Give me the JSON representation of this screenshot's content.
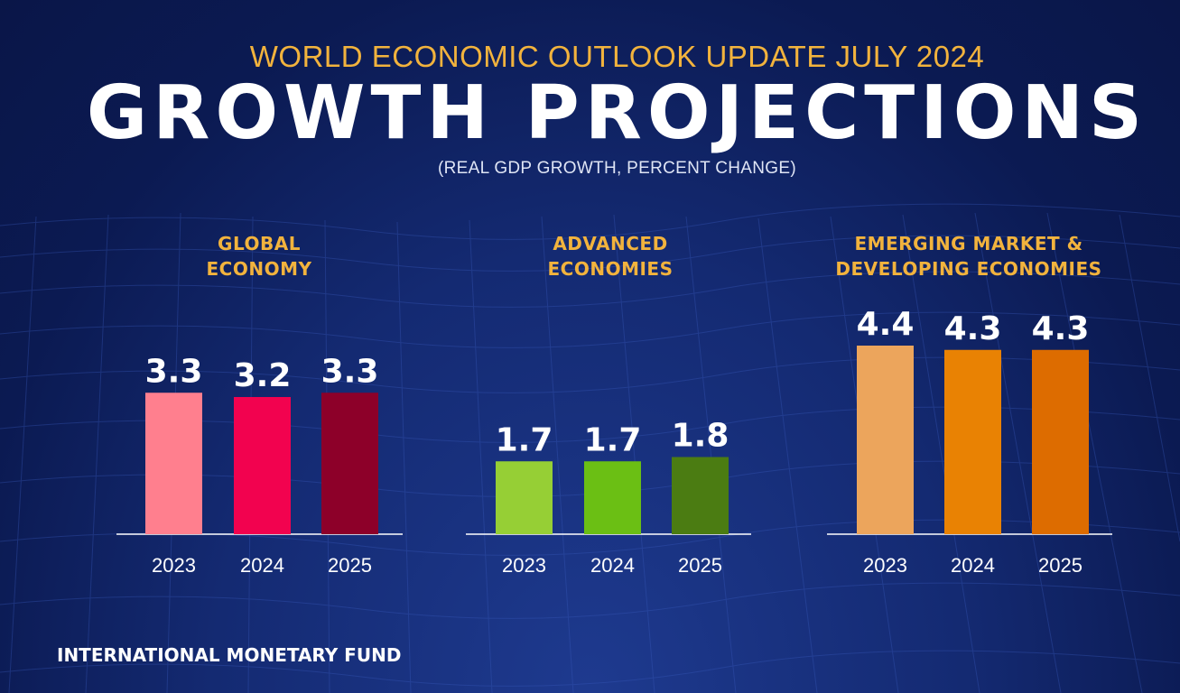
{
  "header": {
    "supertitle": "WORLD ECONOMIC OUTLOOK UPDATE JULY 2024",
    "title": "GROWTH PROJECTIONS",
    "subtitle": "(REAL GDP GROWTH, PERCENT CHANGE)"
  },
  "footer": {
    "source": "INTERNATIONAL MONETARY FUND"
  },
  "colors": {
    "background": "#0b1a52",
    "accent": "#f2b33d",
    "text": "#ffffff"
  },
  "chart_data": [
    {
      "type": "bar",
      "title_lines": [
        "GLOBAL",
        "ECONOMY"
      ],
      "categories": [
        "2023",
        "2024",
        "2025"
      ],
      "values": [
        3.3,
        3.2,
        3.3
      ],
      "value_labels": [
        "3.3",
        "3.2",
        "3.3"
      ],
      "colors": [
        "#ff7f8e",
        "#f2024f",
        "#8d0029"
      ],
      "ylim": [
        0,
        4.4
      ],
      "xlabel": "",
      "ylabel": "",
      "grid": false
    },
    {
      "type": "bar",
      "title_lines": [
        "ADVANCED",
        "ECONOMIES"
      ],
      "categories": [
        "2023",
        "2024",
        "2025"
      ],
      "values": [
        1.7,
        1.7,
        1.8
      ],
      "value_labels": [
        "1.7",
        "1.7",
        "1.8"
      ],
      "colors": [
        "#96cf35",
        "#6bbf14",
        "#4b7c12"
      ],
      "ylim": [
        0,
        4.4
      ],
      "xlabel": "",
      "ylabel": "",
      "grid": false
    },
    {
      "type": "bar",
      "title_lines": [
        "EMERGING MARKET &",
        "DEVELOPING ECONOMIES"
      ],
      "categories": [
        "2023",
        "2024",
        "2025"
      ],
      "values": [
        4.4,
        4.3,
        4.3
      ],
      "value_labels": [
        "4.4",
        "4.3",
        "4.3"
      ],
      "colors": [
        "#eca55c",
        "#e98203",
        "#dd6c00"
      ],
      "ylim": [
        0,
        4.4
      ],
      "xlabel": "",
      "ylabel": "",
      "grid": false
    }
  ]
}
